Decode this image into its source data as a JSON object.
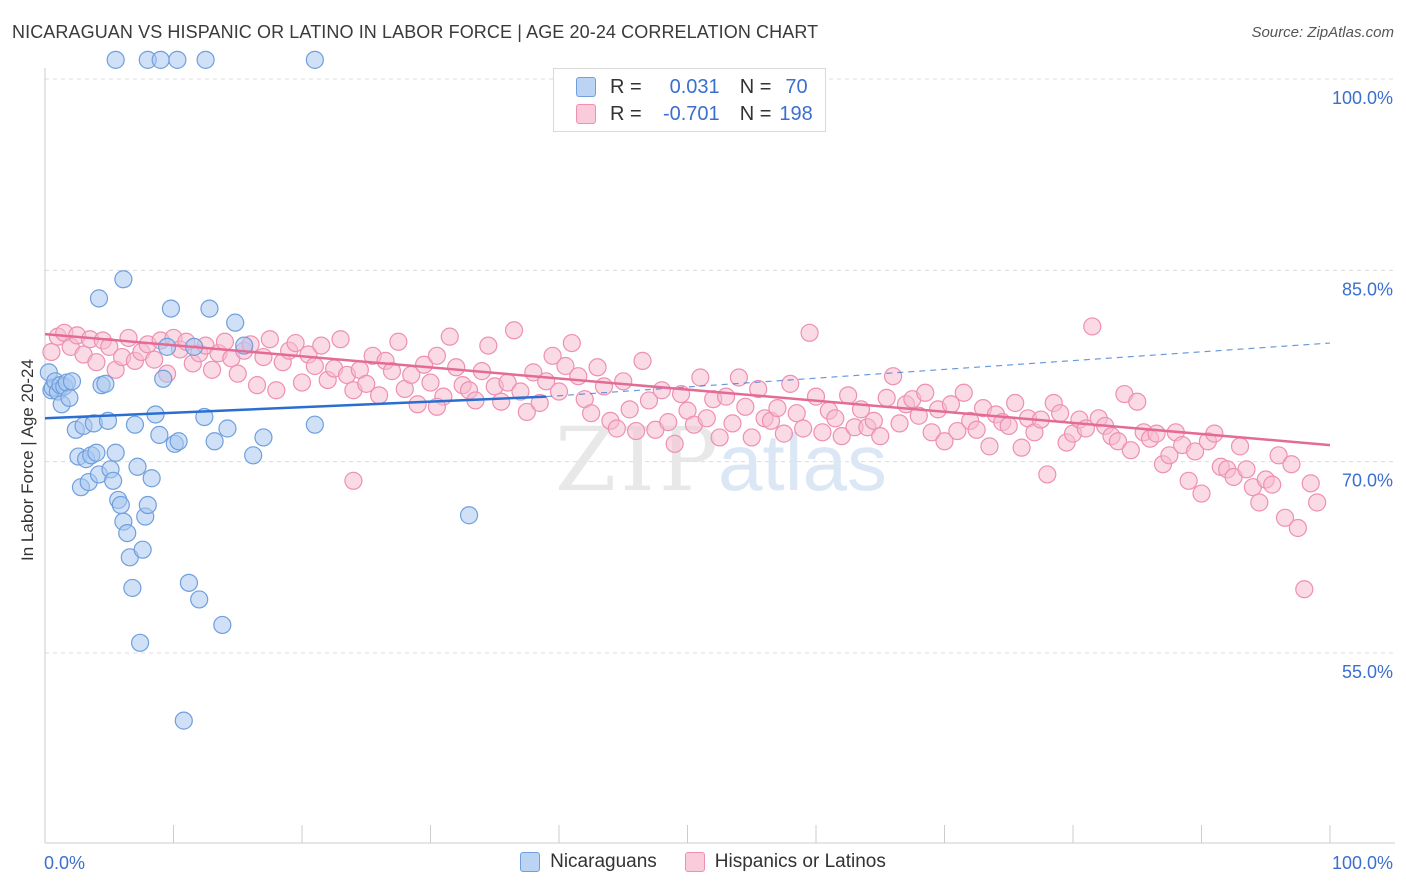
{
  "header": {
    "title": "NICARAGUAN VS HISPANIC OR LATINO IN LABOR FORCE | AGE 20-24 CORRELATION CHART",
    "source": "Source: ZipAtlas.com"
  },
  "legend": {
    "rows": [
      {
        "r_label": "R =",
        "r_value": "0.031",
        "n_label": "N =",
        "n_value": "70"
      },
      {
        "r_label": "R =",
        "r_value": "-0.701",
        "n_label": "N =",
        "n_value": "198"
      }
    ]
  },
  "colors": {
    "blue_fill": "#a9c8f0",
    "blue_stroke": "#6f9fde",
    "blue_line": "#2a6fd0",
    "pink_fill": "#f6bcd0",
    "pink_stroke": "#ef8fb2",
    "pink_line": "#e36b96",
    "tick_label": "#3b6fcf",
    "grid": "#dcdcdc"
  },
  "chart_data": {
    "type": "scatter",
    "title": "NICARAGUAN VS HISPANIC OR LATINO IN LABOR FORCE | AGE 20-24 CORRELATION CHART",
    "ylabel": "In Labor Force | Age 20-24",
    "xlabel": "",
    "xlim": [
      0,
      100
    ],
    "ylim": [
      40,
      105
    ],
    "x_tick_labels": [
      "0.0%",
      "100.0%"
    ],
    "y_ticks": [
      55,
      70,
      85,
      100
    ],
    "y_tick_labels": [
      "55.0%",
      "70.0%",
      "85.0%",
      "100.0%"
    ],
    "grid": true,
    "legend_position": "top-center",
    "watermark": "ZIPatlas",
    "series": [
      {
        "name": "Nicaraguans",
        "color": "#a9c8f0",
        "trend": {
          "x": [
            0,
            39
          ],
          "y": [
            73.4,
            75.1
          ],
          "dashed_extension": {
            "x": [
              39,
              100
            ],
            "y": [
              75.1,
              79.3
            ]
          }
        },
        "points": [
          [
            0.3,
            77.0
          ],
          [
            0.5,
            75.6
          ],
          [
            0.6,
            75.8
          ],
          [
            0.8,
            76.3
          ],
          [
            1.0,
            75.5
          ],
          [
            1.2,
            76.0
          ],
          [
            1.3,
            74.5
          ],
          [
            1.5,
            75.9
          ],
          [
            1.7,
            76.2
          ],
          [
            1.9,
            75.0
          ],
          [
            2.1,
            76.3
          ],
          [
            2.4,
            72.5
          ],
          [
            2.6,
            70.4
          ],
          [
            2.8,
            68.0
          ],
          [
            3.0,
            72.8
          ],
          [
            3.2,
            70.2
          ],
          [
            3.4,
            68.4
          ],
          [
            3.6,
            70.5
          ],
          [
            3.8,
            73.0
          ],
          [
            4.0,
            70.7
          ],
          [
            4.2,
            69.0
          ],
          [
            4.4,
            76.0
          ],
          [
            4.7,
            76.1
          ],
          [
            4.9,
            73.2
          ],
          [
            5.1,
            69.4
          ],
          [
            5.3,
            68.5
          ],
          [
            5.5,
            70.7
          ],
          [
            5.7,
            67.0
          ],
          [
            5.9,
            66.6
          ],
          [
            6.1,
            65.3
          ],
          [
            6.4,
            64.4
          ],
          [
            6.6,
            62.5
          ],
          [
            6.8,
            60.1
          ],
          [
            7.0,
            72.9
          ],
          [
            7.2,
            69.6
          ],
          [
            7.4,
            55.8
          ],
          [
            7.6,
            63.1
          ],
          [
            7.8,
            65.7
          ],
          [
            8.0,
            66.6
          ],
          [
            8.3,
            68.7
          ],
          [
            8.6,
            73.7
          ],
          [
            8.9,
            72.1
          ],
          [
            9.2,
            76.5
          ],
          [
            9.5,
            79.0
          ],
          [
            9.8,
            82.0
          ],
          [
            10.1,
            71.4
          ],
          [
            10.4,
            71.6
          ],
          [
            10.8,
            49.7
          ],
          [
            11.2,
            60.5
          ],
          [
            11.6,
            79.0
          ],
          [
            12.0,
            59.2
          ],
          [
            12.4,
            73.5
          ],
          [
            12.8,
            82.0
          ],
          [
            13.2,
            71.6
          ],
          [
            13.8,
            57.2
          ],
          [
            14.2,
            72.6
          ],
          [
            14.8,
            80.9
          ],
          [
            15.5,
            79.1
          ],
          [
            16.2,
            70.5
          ],
          [
            17.0,
            71.9
          ],
          [
            21.0,
            72.9
          ],
          [
            33.0,
            65.8
          ],
          [
            5.5,
            101.5
          ],
          [
            8.0,
            101.5
          ],
          [
            9.0,
            101.5
          ],
          [
            10.3,
            101.5
          ],
          [
            12.5,
            101.5
          ],
          [
            21.0,
            101.5
          ],
          [
            6.1,
            84.3
          ],
          [
            4.2,
            82.8
          ]
        ]
      },
      {
        "name": "Hispanics or Latinos",
        "color": "#f6bcd0",
        "trend": {
          "x": [
            0,
            100
          ],
          "y": [
            80.0,
            71.3
          ]
        },
        "points": [
          [
            0.5,
            78.6
          ],
          [
            1.0,
            79.8
          ],
          [
            1.5,
            80.1
          ],
          [
            2.0,
            79.0
          ],
          [
            2.5,
            79.9
          ],
          [
            3.0,
            78.4
          ],
          [
            3.5,
            79.6
          ],
          [
            4.0,
            77.8
          ],
          [
            4.5,
            79.5
          ],
          [
            5.0,
            79.0
          ],
          [
            5.5,
            77.2
          ],
          [
            6.0,
            78.2
          ],
          [
            6.5,
            79.7
          ],
          [
            7.0,
            77.9
          ],
          [
            7.5,
            78.6
          ],
          [
            8.0,
            79.2
          ],
          [
            8.5,
            78.0
          ],
          [
            9.0,
            79.5
          ],
          [
            9.5,
            76.9
          ],
          [
            10.0,
            79.7
          ],
          [
            10.5,
            78.8
          ],
          [
            11.0,
            79.4
          ],
          [
            11.5,
            77.7
          ],
          [
            12.0,
            78.5
          ],
          [
            12.5,
            79.1
          ],
          [
            13.0,
            77.2
          ],
          [
            13.5,
            78.5
          ],
          [
            14.0,
            79.4
          ],
          [
            14.5,
            78.1
          ],
          [
            15.0,
            76.9
          ],
          [
            15.5,
            78.7
          ],
          [
            16.0,
            79.2
          ],
          [
            16.5,
            76.0
          ],
          [
            17.0,
            78.2
          ],
          [
            17.5,
            79.6
          ],
          [
            18.0,
            75.6
          ],
          [
            18.5,
            77.8
          ],
          [
            19.0,
            78.7
          ],
          [
            19.5,
            79.3
          ],
          [
            20.0,
            76.2
          ],
          [
            20.5,
            78.4
          ],
          [
            21.0,
            77.5
          ],
          [
            21.5,
            79.1
          ],
          [
            22.0,
            76.4
          ],
          [
            22.5,
            77.3
          ],
          [
            23.0,
            79.6
          ],
          [
            23.5,
            76.8
          ],
          [
            24.0,
            75.6
          ],
          [
            24.5,
            77.2
          ],
          [
            25.0,
            76.1
          ],
          [
            25.5,
            78.3
          ],
          [
            26.0,
            75.2
          ],
          [
            26.5,
            77.9
          ],
          [
            27.0,
            77.1
          ],
          [
            27.5,
            79.4
          ],
          [
            28.0,
            75.7
          ],
          [
            28.5,
            76.8
          ],
          [
            29.0,
            74.5
          ],
          [
            29.5,
            77.6
          ],
          [
            30.0,
            76.2
          ],
          [
            30.5,
            78.3
          ],
          [
            31.0,
            75.1
          ],
          [
            31.5,
            79.8
          ],
          [
            32.0,
            77.4
          ],
          [
            32.5,
            76.0
          ],
          [
            33.0,
            75.6
          ],
          [
            33.5,
            74.8
          ],
          [
            34.0,
            77.1
          ],
          [
            34.5,
            79.1
          ],
          [
            35.0,
            75.9
          ],
          [
            35.5,
            74.7
          ],
          [
            36.0,
            76.2
          ],
          [
            36.5,
            80.3
          ],
          [
            37.0,
            75.5
          ],
          [
            37.5,
            73.9
          ],
          [
            38.0,
            77.0
          ],
          [
            38.5,
            74.6
          ],
          [
            39.0,
            76.3
          ],
          [
            39.5,
            78.3
          ],
          [
            40.0,
            75.5
          ],
          [
            40.5,
            77.5
          ],
          [
            41.0,
            79.3
          ],
          [
            41.5,
            76.7
          ],
          [
            42.0,
            74.9
          ],
          [
            42.5,
            73.8
          ],
          [
            43.0,
            77.4
          ],
          [
            43.5,
            75.9
          ],
          [
            44.0,
            73.2
          ],
          [
            44.5,
            72.6
          ],
          [
            45.0,
            76.3
          ],
          [
            45.5,
            74.1
          ],
          [
            46.0,
            72.4
          ],
          [
            46.5,
            77.9
          ],
          [
            47.0,
            74.8
          ],
          [
            47.5,
            72.5
          ],
          [
            48.0,
            75.6
          ],
          [
            48.5,
            73.1
          ],
          [
            49.0,
            71.4
          ],
          [
            49.5,
            75.3
          ],
          [
            50.0,
            74.0
          ],
          [
            50.5,
            72.9
          ],
          [
            51.0,
            76.6
          ],
          [
            51.5,
            73.4
          ],
          [
            52.0,
            74.9
          ],
          [
            52.5,
            71.9
          ],
          [
            53.0,
            75.1
          ],
          [
            53.5,
            73.0
          ],
          [
            54.0,
            76.6
          ],
          [
            54.5,
            74.3
          ],
          [
            55.0,
            71.9
          ],
          [
            55.5,
            75.7
          ],
          [
            56.0,
            73.4
          ],
          [
            56.5,
            73.2
          ],
          [
            57.0,
            74.2
          ],
          [
            57.5,
            72.2
          ],
          [
            58.0,
            76.1
          ],
          [
            58.5,
            73.8
          ],
          [
            59.0,
            72.6
          ],
          [
            59.5,
            80.1
          ],
          [
            60.0,
            75.1
          ],
          [
            60.5,
            72.3
          ],
          [
            61.0,
            74.0
          ],
          [
            61.5,
            73.4
          ],
          [
            62.0,
            72.0
          ],
          [
            62.5,
            75.2
          ],
          [
            63.0,
            72.7
          ],
          [
            63.5,
            74.1
          ],
          [
            64.0,
            72.7
          ],
          [
            64.5,
            73.2
          ],
          [
            65.0,
            72.0
          ],
          [
            65.5,
            75.0
          ],
          [
            66.0,
            76.7
          ],
          [
            66.5,
            73.0
          ],
          [
            67.0,
            74.5
          ],
          [
            67.5,
            74.9
          ],
          [
            68.0,
            73.6
          ],
          [
            68.5,
            75.4
          ],
          [
            69.0,
            72.3
          ],
          [
            69.5,
            74.1
          ],
          [
            70.0,
            71.6
          ],
          [
            70.5,
            74.5
          ],
          [
            71.0,
            72.4
          ],
          [
            71.5,
            75.4
          ],
          [
            72.0,
            73.2
          ],
          [
            72.5,
            72.5
          ],
          [
            73.0,
            74.2
          ],
          [
            73.5,
            71.2
          ],
          [
            74.0,
            73.7
          ],
          [
            74.5,
            73.1
          ],
          [
            75.0,
            72.8
          ],
          [
            75.5,
            74.6
          ],
          [
            76.0,
            71.1
          ],
          [
            76.5,
            73.4
          ],
          [
            77.0,
            72.3
          ],
          [
            77.5,
            73.3
          ],
          [
            78.0,
            69.0
          ],
          [
            78.5,
            74.6
          ],
          [
            79.0,
            73.8
          ],
          [
            79.5,
            71.5
          ],
          [
            80.0,
            72.2
          ],
          [
            80.5,
            73.3
          ],
          [
            81.0,
            72.6
          ],
          [
            81.5,
            80.6
          ],
          [
            82.0,
            73.4
          ],
          [
            82.5,
            72.8
          ],
          [
            83.0,
            72.0
          ],
          [
            83.5,
            71.6
          ],
          [
            84.0,
            75.3
          ],
          [
            84.5,
            70.9
          ],
          [
            85.0,
            74.7
          ],
          [
            85.5,
            72.3
          ],
          [
            86.0,
            71.8
          ],
          [
            86.5,
            72.2
          ],
          [
            87.0,
            69.8
          ],
          [
            87.5,
            70.5
          ],
          [
            88.0,
            72.3
          ],
          [
            88.5,
            71.3
          ],
          [
            89.0,
            68.5
          ],
          [
            89.5,
            70.8
          ],
          [
            90.0,
            67.5
          ],
          [
            90.5,
            71.6
          ],
          [
            91.0,
            72.2
          ],
          [
            91.5,
            69.6
          ],
          [
            92.0,
            69.4
          ],
          [
            92.5,
            68.8
          ],
          [
            93.0,
            71.2
          ],
          [
            93.5,
            69.4
          ],
          [
            94.0,
            68.0
          ],
          [
            94.5,
            66.8
          ],
          [
            95.0,
            68.6
          ],
          [
            95.5,
            68.2
          ],
          [
            96.0,
            70.5
          ],
          [
            96.5,
            65.6
          ],
          [
            97.0,
            69.8
          ],
          [
            97.5,
            64.8
          ],
          [
            98.0,
            60.0
          ],
          [
            98.5,
            68.3
          ],
          [
            99.0,
            66.8
          ],
          [
            24.0,
            68.5
          ],
          [
            30.5,
            74.3
          ]
        ]
      }
    ]
  },
  "bottom_legend": {
    "items": [
      "Nicaraguans",
      "Hispanics or Latinos"
    ]
  }
}
